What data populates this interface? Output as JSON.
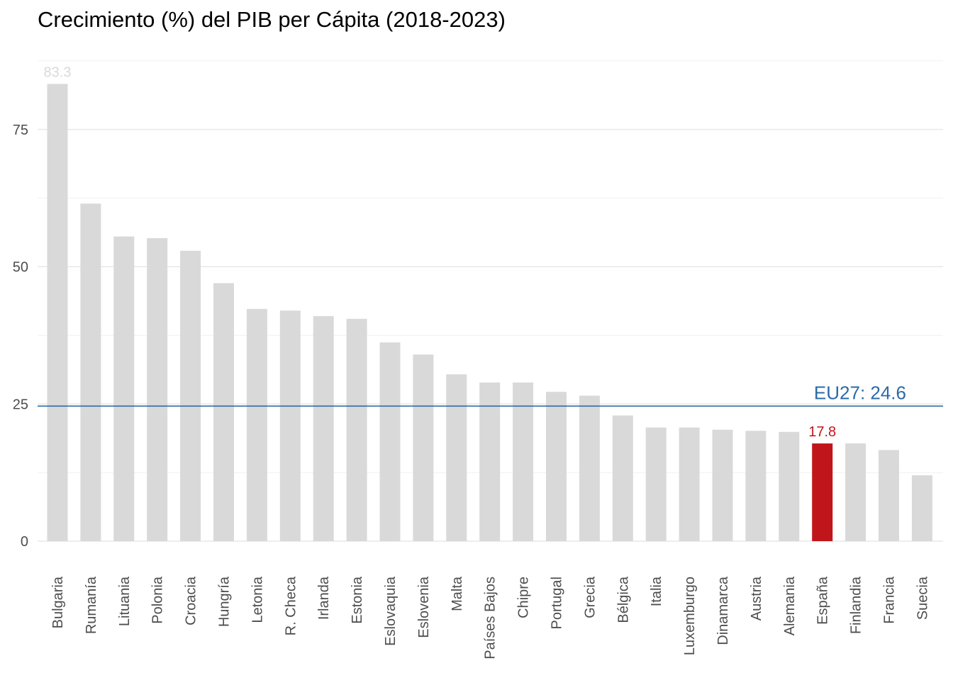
{
  "chart_data": {
    "type": "bar",
    "title": "Crecimiento (%) del PIB per Cápita (2018-2023)",
    "xlabel": "",
    "ylabel": "",
    "ylim": [
      0,
      88
    ],
    "yticks": [
      0,
      25,
      50,
      75
    ],
    "grid": true,
    "legend": "none",
    "categories": [
      "Bulgaria",
      "Rumanía",
      "Lituania",
      "Polonia",
      "Croacia",
      "Hungría",
      "Letonia",
      "R. Checa",
      "Irlanda",
      "Estonia",
      "Eslovaquia",
      "Eslovenia",
      "Malta",
      "Países Bajos",
      "Chipre",
      "Portugal",
      "Grecia",
      "Bélgica",
      "Italia",
      "Luxemburgo",
      "Dinamarca",
      "Austria",
      "Alemania",
      "España",
      "Finlandia",
      "Francia",
      "Suecia"
    ],
    "values": [
      83.3,
      61.5,
      55.5,
      55.2,
      52.9,
      47.0,
      42.3,
      42.0,
      41.0,
      40.5,
      36.2,
      34.0,
      30.4,
      28.9,
      28.9,
      27.2,
      26.5,
      22.9,
      20.7,
      20.7,
      20.3,
      20.1,
      19.9,
      17.8,
      17.8,
      16.6,
      12.0
    ],
    "highlight": {
      "category": "España",
      "color": "#c0161b"
    },
    "bar_color": "#d9d9d9",
    "data_labels": [
      {
        "category": "Bulgaria",
        "text": "83.3",
        "color": "#d9d9d9"
      },
      {
        "category": "España",
        "text": "17.8",
        "color": "#c0161b"
      }
    ],
    "reference_line": {
      "value": 24.6,
      "label": "EU27: 24.6",
      "color": "#2b6aa7"
    }
  }
}
